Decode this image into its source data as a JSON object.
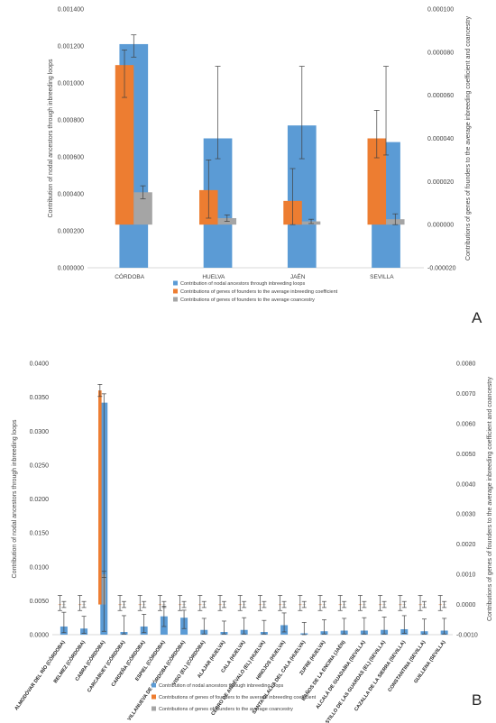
{
  "colors": {
    "loops": "#5b9bd5",
    "inbreeding": "#ed7d31",
    "coancestry": "#a5a5a5",
    "axis": "#d9d9d9",
    "error": "#404040",
    "text": "#404040"
  },
  "panels": {
    "a": {
      "letter": "A"
    },
    "b": {
      "letter": "B"
    }
  },
  "chart_data": [
    {
      "type": "bar",
      "panel": "A",
      "ylabel": "Contribution of nodal ancestors through inbreeding loops",
      "ylabel_right": "Contributions of genes of founders to the average inbreeding coefficient and coancestry",
      "ylim": [
        0,
        0.0014
      ],
      "ylim_right": [
        -2e-05,
        0.0001
      ],
      "yticks": [
        "0.000000",
        "0.000200",
        "0.000400",
        "0.000600",
        "0.000800",
        "0.001000",
        "0.001200",
        "0.001400"
      ],
      "yticks_right": [
        "-0.000020",
        "0.000000",
        "0.000020",
        "0.000040",
        "0.000060",
        "0.000080",
        "0.000100"
      ],
      "categories": [
        "CÓRDOBA",
        "HUELVA",
        "JAÉN",
        "SEVILLA"
      ],
      "legend_position": "bottom",
      "series": [
        {
          "name": "Contribution of nodal ancestors through inbreeding loops",
          "axis": "left",
          "color": "loops",
          "values": [
            0.00121,
            0.0007,
            0.00077,
            0.00068
          ],
          "err_low": [
            0.00114,
            0.00059,
            0.00059,
            0.00061
          ],
          "err_high": [
            0.00126,
            0.00109,
            0.00109,
            0.00109
          ]
        },
        {
          "name": "Contributions of genes of founders to the average inbreeding coefficient",
          "axis": "right",
          "color": "inbreeding",
          "values": [
            7.4e-05,
            1.6e-05,
            1.1e-05,
            4e-05
          ],
          "err_low": [
            5.9e-05,
            3e-06,
            0.0,
            3.1e-05
          ],
          "err_high": [
            8.1e-05,
            3e-05,
            2.6e-05,
            5.3e-05
          ]
        },
        {
          "name": "Contributions of genes of founders to the average coancestry",
          "axis": "right",
          "color": "coancestry",
          "values": [
            1.5e-05,
            3e-06,
            1.5e-06,
            2.5e-06
          ],
          "err_low": [
            1.2e-05,
            1.5e-06,
            5e-07,
            0.0
          ],
          "err_high": [
            1.8e-05,
            4.5e-06,
            2.5e-06,
            5e-06
          ]
        }
      ]
    },
    {
      "type": "bar",
      "panel": "B",
      "ylabel": "Contribution of nodal ancestors through inbreeding loops",
      "ylabel_right": "Contributions of genes of founders to the average inbreeding coefficient and coancestry",
      "ylim": [
        0,
        0.04
      ],
      "ylim_right": [
        -0.001,
        0.008
      ],
      "yticks": [
        "0.0000",
        "0.0050",
        "0.0100",
        "0.0150",
        "0.0200",
        "0.0250",
        "0.0300",
        "0.0350",
        "0.0400"
      ],
      "yticks_right": [
        "-0.0010",
        "0.0000",
        "0.0010",
        "0.0020",
        "0.0030",
        "0.0040",
        "0.0050",
        "0.0060",
        "0.0070",
        "0.0080"
      ],
      "categories": [
        "ALMODÓVAR DEL RÍO (CÓRDOBA)",
        "BELMEZ (CÓRDOBA)",
        "CABRA (CÓRDOBA)",
        "CARCABUEY (CÓRDOBA)",
        "CARDEÑA (CÓRDOBA)",
        "ESPIEL (CÓRDOBA)",
        "VILLANUEVA DE CÓRDOBA (CÓRDOBA)",
        "VISO (EL) (CÓRDOBA)",
        "ALAJAR (HUELVA)",
        "CALA (HUELVA)",
        "CERRO DE ANDÉVALO (EL) (HUELVA)",
        "HINOJOS (HUELVA)",
        "SANTA OLALLA DEL CALA (HUELVA)",
        "ZUFRE (HUELVA)",
        "BAÑOS DE LA ENCINA (JAÉN)",
        "ALCALÁ DE GUADAÍRA (SEVILLA)",
        "CASTILLO DE LAS GUARDAS (EL) (SEVILLA)",
        "CAZALLA DE LA SIERRA (SEVILLA)",
        "CONSTANTINA (SEVILLA)",
        "GUILLENA (SEVILLA)"
      ],
      "legend_position": "bottom",
      "series": [
        {
          "name": "Contribution of nodal ancestors through inbreeding loops",
          "axis": "left",
          "color": "loops",
          "values": [
            0.0012,
            0.0009,
            0.0342,
            0.0004,
            0.0012,
            0.0027,
            0.0025,
            0.0007,
            0.0004,
            0.0007,
            0.0004,
            0.0014,
            0.0002,
            0.0005,
            0.0006,
            0.0006,
            0.0007,
            0.0008,
            0.0005,
            0.0006
          ],
          "err_low": [
            0.0003,
            0.0002,
            0.0005,
            0.0001,
            0.0003,
            0.0012,
            0.0009,
            0.0001,
            0.0001,
            0.0001,
            0.0001,
            0.0004,
            0.0,
            0.0001,
            0.0001,
            0.0001,
            0.0001,
            0.0002,
            0.0001,
            0.0001
          ],
          "err_high": [
            0.0033,
            0.0027,
            0.0355,
            0.0028,
            0.003,
            0.0042,
            0.0036,
            0.0024,
            0.002,
            0.0025,
            0.0021,
            0.0032,
            0.0018,
            0.0022,
            0.0024,
            0.0025,
            0.0026,
            0.0028,
            0.0023,
            0.0024
          ]
        },
        {
          "name": "Contributions of genes of founders to the average inbreeding coefficient",
          "axis": "right",
          "color": "inbreeding",
          "values": [
            0.0,
            0.0,
            0.0071,
            0.0,
            0.0,
            0.0,
            0.0,
            0.0,
            0.0,
            0.0,
            0.0,
            0.0,
            0.0,
            0.0,
            0.0,
            0.0,
            0.0,
            0.0,
            0.0,
            0.0
          ],
          "err_low": [
            -0.0002,
            -0.0002,
            0.0069,
            -0.0002,
            -0.0002,
            -0.0002,
            -0.0002,
            -0.0002,
            -0.0002,
            -0.0002,
            -0.0002,
            -0.0002,
            -0.0002,
            -0.0002,
            -0.0002,
            -0.0002,
            -0.0002,
            -0.0002,
            -0.0002,
            -0.0002
          ],
          "err_high": [
            0.0003,
            0.0003,
            0.0073,
            0.0003,
            0.0003,
            0.0003,
            0.0003,
            0.0003,
            0.0003,
            0.0003,
            0.0003,
            0.0003,
            0.0003,
            0.0003,
            0.0003,
            0.0003,
            0.0003,
            0.0003,
            0.0003,
            0.0003
          ]
        },
        {
          "name": "Contributions of genes of founders to the average coancestry",
          "axis": "right",
          "color": "coancestry",
          "values": [
            0.0,
            0.0,
            0.001,
            0.0,
            0.0,
            0.0,
            0.0,
            0.0,
            0.0,
            0.0,
            0.0,
            0.0,
            0.0,
            0.0,
            0.0,
            0.0,
            0.0,
            0.0,
            0.0,
            0.0
          ],
          "err_low": [
            -0.0001,
            -0.0001,
            0.0009,
            -0.0001,
            -0.0001,
            -0.0001,
            -0.0001,
            -0.0001,
            -0.0001,
            -0.0001,
            -0.0001,
            -0.0001,
            -0.0001,
            -0.0001,
            -0.0001,
            -0.0001,
            -0.0001,
            -0.0001,
            -0.0001,
            -0.0001
          ],
          "err_high": [
            0.0001,
            0.0001,
            0.0011,
            0.0001,
            0.0001,
            0.0001,
            0.0001,
            0.0001,
            0.0001,
            0.0001,
            0.0001,
            0.0001,
            0.0001,
            0.0001,
            0.0001,
            0.0001,
            0.0001,
            0.0001,
            0.0001,
            0.0001
          ]
        }
      ]
    }
  ]
}
